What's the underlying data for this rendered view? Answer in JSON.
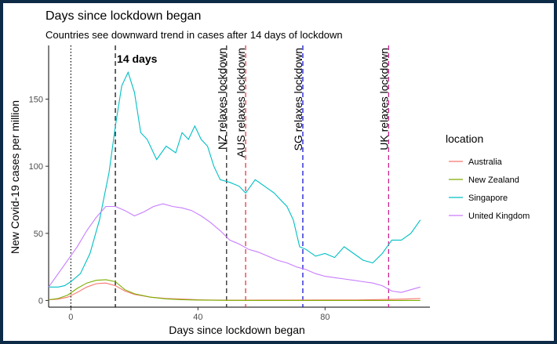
{
  "chart_data": {
    "type": "line",
    "title": "Days since lockdown began",
    "subtitle": "Countries see downward trend in cases after 14 days of lockdown",
    "xlabel": "Days since lockdown began",
    "ylabel": "New Covid-19 cases per million",
    "xlim": [
      -7,
      113
    ],
    "ylim": [
      -5,
      190
    ],
    "x_ticks": [
      0,
      40,
      80
    ],
    "y_ticks": [
      0,
      50,
      100,
      150
    ],
    "legend": {
      "title": "location",
      "position": "right"
    },
    "series": [
      {
        "name": "Australia",
        "color": "#F8766D",
        "x": [
          -7,
          -4,
          -1,
          2,
          5,
          8,
          11,
          14,
          17,
          20,
          25,
          30,
          35,
          40,
          45,
          50,
          55,
          60,
          70,
          80,
          90,
          100,
          105,
          110
        ],
        "y": [
          0.5,
          1,
          2.5,
          6,
          10,
          12.5,
          13,
          11,
          7,
          4.5,
          2.5,
          1.5,
          1,
          0.5,
          0.3,
          0.2,
          0.2,
          0.3,
          0.3,
          0.4,
          0.4,
          0.8,
          1,
          1.5
        ]
      },
      {
        "name": "New Zealand",
        "color": "#7CAE00",
        "x": [
          -7,
          -4,
          -1,
          2,
          5,
          8,
          11,
          14,
          17,
          20,
          25,
          30,
          35,
          40,
          50,
          60,
          70,
          80,
          90,
          100,
          105,
          110
        ],
        "y": [
          0.5,
          1.5,
          4,
          9,
          13,
          15,
          15.5,
          14,
          8,
          5,
          2.5,
          1.2,
          0.6,
          0.3,
          0.1,
          0,
          0,
          0,
          0,
          0,
          0,
          0
        ]
      },
      {
        "name": "Singapore",
        "color": "#00BFC4",
        "x": [
          -7,
          -4,
          -2,
          0,
          3,
          6,
          9,
          12,
          14,
          16,
          18,
          20,
          22,
          24,
          27,
          30,
          33,
          35,
          37,
          39,
          41,
          43,
          45,
          47,
          50,
          53,
          55,
          58,
          61,
          64,
          66,
          68,
          70,
          72,
          74,
          77,
          80,
          83,
          86,
          89,
          92,
          95,
          98,
          101,
          104,
          107,
          110
        ],
        "y": [
          10,
          10,
          11,
          14,
          20,
          35,
          60,
          95,
          130,
          160,
          170,
          155,
          125,
          120,
          105,
          115,
          110,
          125,
          120,
          130,
          120,
          115,
          100,
          90,
          88,
          85,
          80,
          90,
          85,
          80,
          75,
          70,
          60,
          40,
          38,
          33,
          35,
          32,
          40,
          35,
          30,
          28,
          35,
          45,
          45,
          50,
          60
        ]
      },
      {
        "name": "United Kingdom",
        "color": "#C77CFF",
        "x": [
          -7,
          -4,
          -1,
          2,
          5,
          8,
          11,
          14,
          17,
          20,
          23,
          26,
          29,
          32,
          35,
          38,
          41,
          44,
          47,
          50,
          53,
          56,
          59,
          62,
          65,
          68,
          71,
          74,
          77,
          80,
          83,
          86,
          89,
          92,
          95,
          98,
          101,
          104,
          107,
          110
        ],
        "y": [
          10,
          20,
          30,
          40,
          52,
          62,
          70,
          70,
          67,
          63,
          66,
          70,
          72,
          70,
          69,
          67,
          63,
          58,
          52,
          45,
          42,
          38,
          36,
          33,
          30,
          28,
          25,
          23,
          20,
          18,
          17,
          16,
          15,
          14,
          13,
          11,
          7,
          6,
          8,
          10
        ]
      }
    ],
    "vlines": [
      {
        "x": 0,
        "style": "dotted",
        "color": "#000000",
        "label": ""
      },
      {
        "x": 14,
        "style": "dashed",
        "color": "#000000",
        "label": "14 days",
        "label_color": "#87CEEB"
      },
      {
        "x": 49,
        "style": "dashed",
        "color": "#1a1a1a",
        "label": "NZ relaxes lockdown"
      },
      {
        "x": 55,
        "style": "dashed",
        "color": "#E32636",
        "label": "AUS relaxes lockdown"
      },
      {
        "x": 73,
        "style": "dashed",
        "color": "#0000CD",
        "label": "SG relaxes lockdown"
      },
      {
        "x": 100,
        "style": "dashed",
        "color": "#C71585",
        "label": "UK relaxes lockdown"
      }
    ]
  }
}
